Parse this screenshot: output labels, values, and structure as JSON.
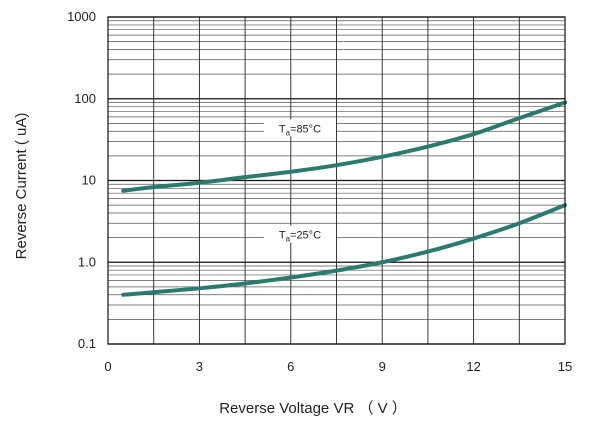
{
  "chart_data": {
    "type": "line",
    "xlabel": "Reverse Voltage VR （ V ）",
    "ylabel": "Reverse  Current ( uA)",
    "y_scale": "log",
    "xlim": [
      0,
      15
    ],
    "ylim": [
      0.1,
      1000
    ],
    "x_ticks": [
      0,
      3,
      6,
      9,
      12,
      15
    ],
    "x_tick_labels": [
      "0",
      "3",
      "6",
      "9",
      "12",
      "15"
    ],
    "y_ticks": [
      0.1,
      1,
      10,
      100,
      1000
    ],
    "y_tick_labels": [
      "0.1",
      "1.0",
      "10",
      "100",
      "1000"
    ],
    "grid": true,
    "line_color": "#2b7a6e",
    "series": [
      {
        "label_main": "T",
        "label_sub": "a",
        "label_rest": "=85°C",
        "x": [
          0.5,
          1.5,
          3,
          4.5,
          6,
          7.5,
          9,
          10.5,
          12,
          13.5,
          15
        ],
        "y": [
          7.5,
          8.3,
          9.4,
          11,
          12.8,
          15.4,
          19.5,
          26,
          37,
          58,
          90
        ]
      },
      {
        "label_main": "T",
        "label_sub": "a",
        "label_rest": "=25°C",
        "x": [
          0.5,
          1.5,
          3,
          4.5,
          6,
          7.5,
          9,
          10.5,
          12,
          13.5,
          15
        ],
        "y": [
          0.4,
          0.43,
          0.48,
          0.55,
          0.65,
          0.79,
          1.0,
          1.35,
          1.95,
          3.0,
          5.0
        ]
      }
    ]
  }
}
